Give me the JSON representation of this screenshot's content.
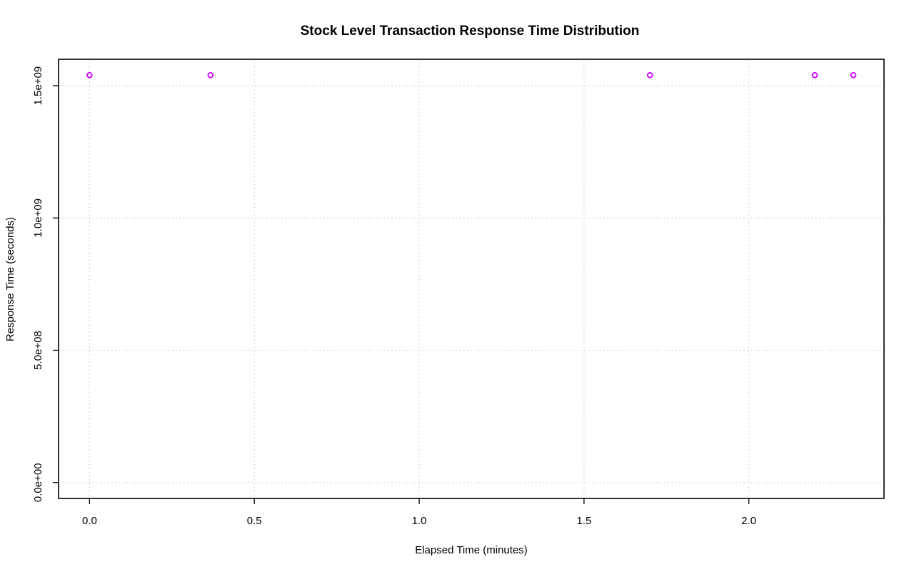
{
  "chart_data": {
    "type": "scatter",
    "title": "Stock Level Transaction Response Time Distribution",
    "xlabel": "Elapsed Time (minutes)",
    "ylabel": "Response Time (seconds)",
    "xlim": [
      -0.094,
      2.41
    ],
    "ylim": [
      -60000000,
      1600000000
    ],
    "x_ticks": [
      0.0,
      0.5,
      1.0,
      1.5,
      2.0
    ],
    "x_tick_labels": [
      "0.0",
      "0.5",
      "1.0",
      "1.5",
      "2.0"
    ],
    "y_ticks": [
      0,
      500000000,
      1000000000,
      1500000000
    ],
    "y_tick_labels": [
      "0.0e+00",
      "5.0e+08",
      "1.0e+09",
      "1.5e+09"
    ],
    "grid": true,
    "legend": "none",
    "series": [
      {
        "color": "#cc00ff",
        "marker": "open-circle",
        "x": [
          0.0,
          0.367,
          1.7,
          2.2,
          2.317
        ],
        "y": [
          1540000000,
          1540000000,
          1540000000,
          1540000000,
          1540000000
        ]
      }
    ]
  }
}
